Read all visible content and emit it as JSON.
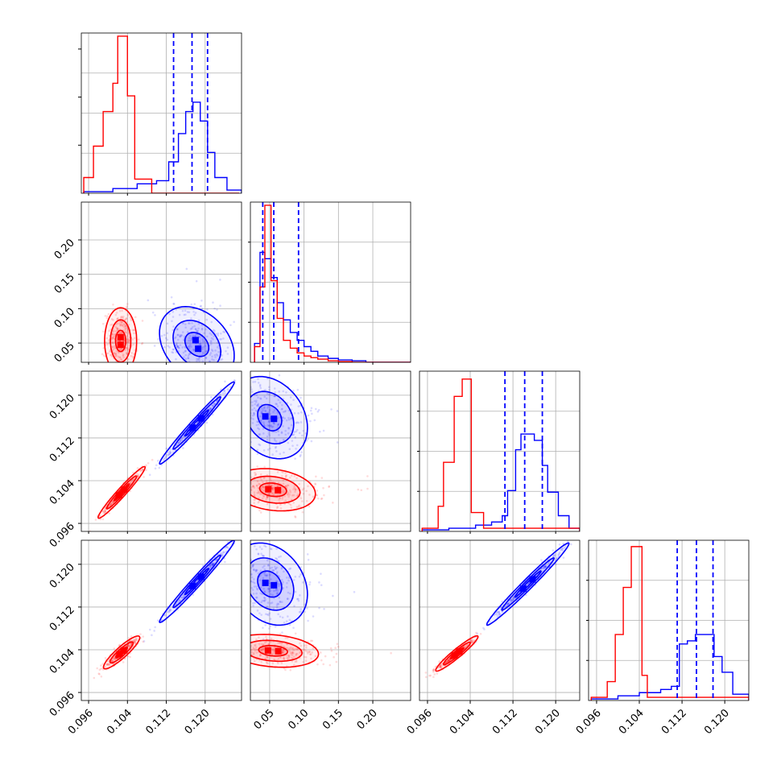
{
  "colors": {
    "red": "#ff0000",
    "blue": "#0000ff",
    "grid": "#b0b0b0"
  },
  "chart_data": {
    "type": "corner",
    "parameter_count": 4,
    "quantile_lines_series": "blue",
    "axis_ranges": [
      [
        0.0945,
        0.1275
      ],
      [
        0.022,
        0.255
      ],
      [
        0.0945,
        0.1245
      ],
      [
        0.0945,
        0.1245
      ]
    ],
    "ticks": [
      [
        "0.096",
        "0.104",
        "0.112",
        "0.120"
      ],
      [
        "0.05",
        "0.10",
        "0.15",
        "0.20"
      ],
      [
        "0.096",
        "0.104",
        "0.112",
        "0.120"
      ],
      [
        "0.096",
        "0.104",
        "0.112",
        "0.120"
      ]
    ],
    "tick_values": [
      [
        0.096,
        0.104,
        0.112,
        0.12
      ],
      [
        0.05,
        0.1,
        0.15,
        0.2
      ],
      [
        0.096,
        0.104,
        0.112,
        0.12
      ],
      [
        0.096,
        0.104,
        0.112,
        0.12
      ]
    ],
    "marginals": [
      {
        "param": 0,
        "quantiles_blue": [
          0.1135,
          0.1173,
          0.1205
        ],
        "red": {
          "x": [
            0.095,
            0.097,
            0.099,
            0.101,
            0.102,
            0.104,
            0.1055,
            0.109,
            0.127
          ],
          "h": [
            0.1,
            0.3,
            0.52,
            0.7,
            1.0,
            0.62,
            0.09,
            0.0,
            0.0
          ]
        },
        "blue": {
          "x": [
            0.095,
            0.101,
            0.106,
            0.11,
            0.1125,
            0.1145,
            0.116,
            0.1175,
            0.119,
            0.1205,
            0.122,
            0.1245,
            0.1275
          ],
          "h": [
            0.01,
            0.03,
            0.06,
            0.08,
            0.2,
            0.38,
            0.52,
            0.58,
            0.46,
            0.26,
            0.1,
            0.02,
            0.0
          ]
        }
      },
      {
        "param": 1,
        "quantiles_blue": [
          0.04,
          0.056,
          0.092
        ],
        "red": {
          "x": [
            0.028,
            0.036,
            0.043,
            0.052,
            0.061,
            0.07,
            0.08,
            0.09,
            0.1,
            0.11,
            0.12,
            0.135,
            0.15,
            0.17,
            0.19,
            0.255
          ],
          "h": [
            0.1,
            0.48,
            1.0,
            0.52,
            0.28,
            0.14,
            0.09,
            0.06,
            0.04,
            0.03,
            0.02,
            0.01,
            0.005,
            0.0,
            0.0,
            0.0
          ]
        },
        "blue": {
          "x": [
            0.028,
            0.036,
            0.043,
            0.052,
            0.061,
            0.07,
            0.08,
            0.09,
            0.1,
            0.11,
            0.12,
            0.135,
            0.15,
            0.17,
            0.19,
            0.255
          ],
          "h": [
            0.12,
            0.7,
            0.66,
            0.54,
            0.38,
            0.27,
            0.19,
            0.14,
            0.1,
            0.07,
            0.04,
            0.025,
            0.015,
            0.01,
            0.0,
            0.0
          ]
        }
      },
      {
        "param": 2,
        "quantiles_blue": [
          0.1105,
          0.1142,
          0.1175
        ],
        "red": {
          "x": [
            0.095,
            0.098,
            0.099,
            0.101,
            0.1025,
            0.1042,
            0.1065,
            0.1245
          ],
          "h": [
            0.02,
            0.16,
            0.44,
            0.86,
            0.97,
            0.12,
            0.02,
            0.0
          ]
        },
        "blue": {
          "x": [
            0.095,
            0.1,
            0.105,
            0.108,
            0.11,
            0.111,
            0.1125,
            0.1135,
            0.1145,
            0.116,
            0.1175,
            0.1185,
            0.1205,
            0.1225,
            0.1245
          ],
          "h": [
            0.01,
            0.02,
            0.04,
            0.06,
            0.1,
            0.26,
            0.52,
            0.62,
            0.62,
            0.58,
            0.42,
            0.25,
            0.1,
            0.02,
            0.0
          ]
        }
      },
      {
        "param": 3,
        "quantiles_blue": [
          0.1111,
          0.1147,
          0.1178
        ],
        "red": {
          "x": [
            0.095,
            0.098,
            0.0995,
            0.101,
            0.1025,
            0.1045,
            0.1055,
            0.1245
          ],
          "h": [
            0.02,
            0.12,
            0.42,
            0.72,
            0.98,
            0.16,
            0.02,
            0.0
          ]
        },
        "blue": {
          "x": [
            0.095,
            0.1,
            0.104,
            0.108,
            0.11,
            0.1115,
            0.113,
            0.1145,
            0.1165,
            0.118,
            0.1195,
            0.1215,
            0.1245
          ],
          "h": [
            0.01,
            0.03,
            0.05,
            0.07,
            0.09,
            0.36,
            0.38,
            0.42,
            0.42,
            0.28,
            0.18,
            0.04,
            0.0
          ]
        }
      }
    ],
    "joint": [
      {
        "params": [
          0,
          1
        ],
        "red": {
          "center": [
            0.1026,
            0.053
          ],
          "sigmas": [
            0.0015,
            0.022
          ],
          "rho": 0.0
        },
        "blue": {
          "center": [
            0.1183,
            0.048
          ],
          "sigmas": [
            0.0035,
            0.025
          ],
          "rho": -0.3
        }
      },
      {
        "params": [
          0,
          2
        ],
        "red": {
          "center": [
            0.1028,
            0.1018
          ],
          "sigmas": [
            0.0022,
            0.0022
          ],
          "rho": 0.97
        },
        "blue": {
          "center": [
            0.1183,
            0.1148
          ],
          "sigmas": [
            0.0035,
            0.0035
          ],
          "rho": 0.985
        }
      },
      {
        "params": [
          0,
          3
        ],
        "red": {
          "center": [
            0.1028,
            0.1035
          ],
          "sigmas": [
            0.0017,
            0.0014
          ],
          "rho": 0.9
        },
        "blue": {
          "center": [
            0.1183,
            0.1168
          ],
          "sigmas": [
            0.0035,
            0.0035
          ],
          "rho": 0.985
        }
      },
      {
        "params": [
          1,
          2
        ],
        "red": {
          "center": [
            0.055,
            0.1023
          ],
          "sigmas": [
            0.028,
            0.0018
          ],
          "rho": -0.2
        },
        "blue": {
          "center": [
            0.05,
            0.1158
          ],
          "sigmas": [
            0.025,
            0.0035
          ],
          "rho": -0.25
        }
      },
      {
        "params": [
          1,
          3
        ],
        "red": {
          "center": [
            0.055,
            0.1038
          ],
          "sigmas": [
            0.03,
            0.0014
          ],
          "rho": -0.2
        },
        "blue": {
          "center": [
            0.05,
            0.1163
          ],
          "sigmas": [
            0.025,
            0.0035
          ],
          "rho": -0.25
        }
      },
      {
        "params": [
          2,
          3
        ],
        "red": {
          "center": [
            0.1015,
            0.1033
          ],
          "sigmas": [
            0.0018,
            0.0015
          ],
          "rho": 0.95
        },
        "blue": {
          "center": [
            0.1148,
            0.1163
          ],
          "sigmas": [
            0.0035,
            0.0035
          ],
          "rho": 0.985
        }
      }
    ]
  }
}
